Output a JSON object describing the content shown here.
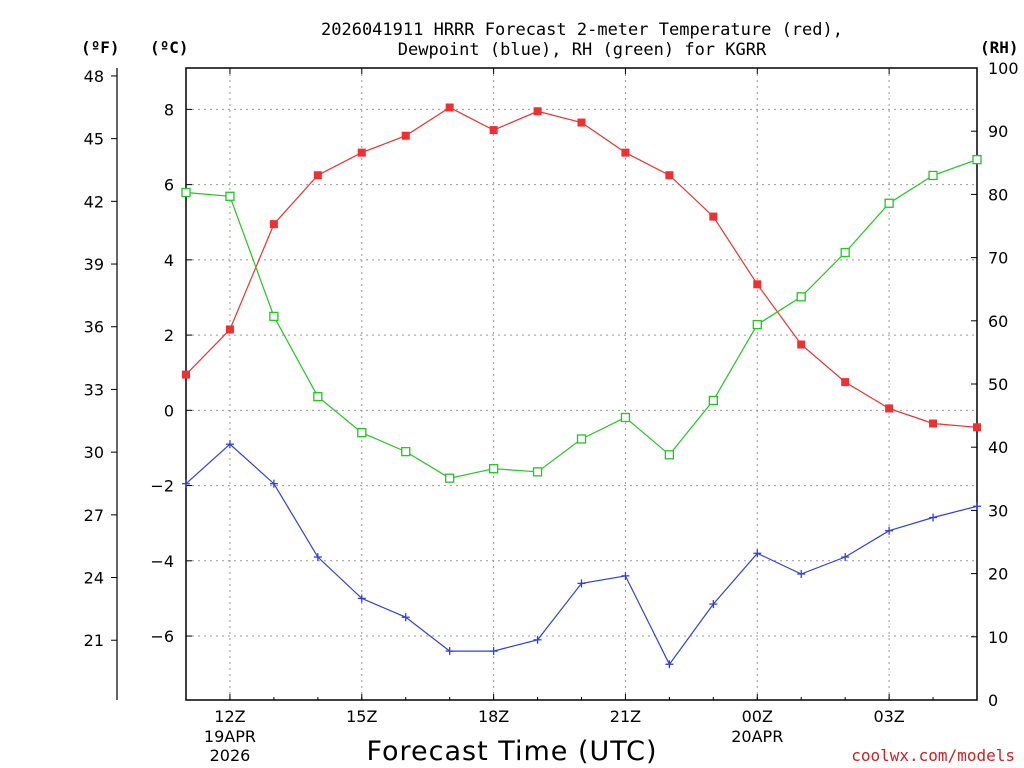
{
  "chart_data": {
    "type": "line",
    "title_line1": "2026041911 HRRR Forecast 2-meter Temperature (red),",
    "title_line2": "Dewpoint (blue), RH (green) for KGRR",
    "unit_f": "(ºF)",
    "unit_c": "(ºC)",
    "unit_rh": "(RH)",
    "xlabel": "Forecast Time (UTC)",
    "credit": "coolwx.com/models",
    "x_hours": [
      11,
      12,
      13,
      14,
      15,
      16,
      17,
      18,
      19,
      20,
      21,
      22,
      23,
      24,
      25,
      26,
      27,
      28,
      29
    ],
    "x_range": [
      11,
      29
    ],
    "x_ticks": [
      {
        "hour": 12,
        "label": "12Z",
        "sub1": "19APR",
        "sub2": "2026"
      },
      {
        "hour": 15,
        "label": "15Z",
        "sub1": "",
        "sub2": ""
      },
      {
        "hour": 18,
        "label": "18Z",
        "sub1": "",
        "sub2": ""
      },
      {
        "hour": 21,
        "label": "21Z",
        "sub1": "",
        "sub2": ""
      },
      {
        "hour": 24,
        "label": "00Z",
        "sub1": "20APR",
        "sub2": ""
      },
      {
        "hour": 27,
        "label": "03Z",
        "sub1": "",
        "sub2": ""
      }
    ],
    "y_celsius_range": [
      -7.7,
      9.1
    ],
    "y_celsius_ticks": [
      "8",
      "6",
      "4",
      "2",
      "0",
      "−2",
      "−4",
      "−6"
    ],
    "y_celsius_tick_values": [
      8,
      6,
      4,
      2,
      0,
      -2,
      -4,
      -6
    ],
    "y_fahrenheit_ticks": [
      "48",
      "45",
      "42",
      "39",
      "36",
      "33",
      "30",
      "27",
      "24",
      "21"
    ],
    "y_fahrenheit_tick_values": [
      48,
      45,
      42,
      39,
      36,
      33,
      30,
      27,
      24,
      21
    ],
    "y_rh_range": [
      0,
      100
    ],
    "y_rh_ticks": [
      "100",
      "90",
      "80",
      "70",
      "60",
      "50",
      "40",
      "30",
      "20",
      "10",
      "0"
    ],
    "y_rh_tick_values": [
      100,
      90,
      80,
      70,
      60,
      50,
      40,
      30,
      20,
      10,
      0
    ],
    "series": [
      {
        "name": "Temperature",
        "axis": "celsius",
        "color": "#f03030",
        "marker": "filled-square",
        "values": [
          0.95,
          2.15,
          4.95,
          6.25,
          6.85,
          7.3,
          8.05,
          7.45,
          7.95,
          7.65,
          6.85,
          6.25,
          5.15,
          3.35,
          1.75,
          0.75,
          0.05,
          -0.35,
          -0.45
        ]
      },
      {
        "name": "Dewpoint",
        "axis": "celsius",
        "color": "#3040e0",
        "marker": "plus",
        "values": [
          -1.95,
          -0.9,
          -1.95,
          -3.9,
          -5.0,
          -5.5,
          -6.4,
          -6.4,
          -6.1,
          -4.6,
          -4.4,
          -6.75,
          -5.15,
          -3.8,
          -4.35,
          -3.9,
          -3.2,
          -2.85,
          -2.55
        ]
      },
      {
        "name": "RH",
        "axis": "rh",
        "color": "#20c820",
        "marker": "open-square",
        "values": [
          80.3,
          79.7,
          60.7,
          48.0,
          42.3,
          39.3,
          35.1,
          36.6,
          36.1,
          41.3,
          44.7,
          38.8,
          47.4,
          59.4,
          63.8,
          70.8,
          78.6,
          83.0,
          85.5
        ]
      }
    ]
  }
}
